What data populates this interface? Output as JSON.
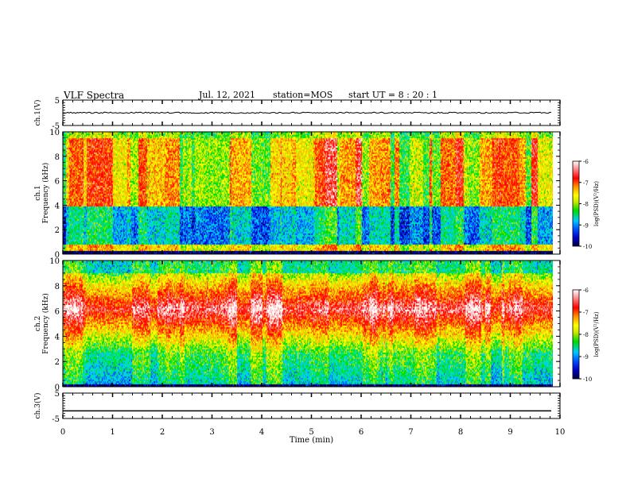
{
  "header": {
    "title": "VLF Spectra",
    "date": "Jul. 12, 2021",
    "station": "station=MOS",
    "start": "start UT =  8 : 20 : 1"
  },
  "chart_data": [
    {
      "type": "line",
      "panel": "ch1-waveform",
      "ylabel": "ch.1(V)",
      "ylim": [
        -5,
        5
      ],
      "yticks": [
        5,
        -5
      ],
      "level": 0
    },
    {
      "type": "heatmap",
      "panel": "ch1-spectrogram",
      "ylabel": "ch.1\nFrequency (kHz)",
      "ylim": [
        0,
        10
      ],
      "yticks": [
        0,
        2,
        4,
        6,
        8,
        10
      ],
      "colorbar": {
        "label": "log(PSD)(V²/Hz)",
        "range": [
          -10,
          -6
        ],
        "ticks": [
          -6,
          -7,
          -8,
          -9,
          -10
        ]
      },
      "description_profile": "broadband bursts 4-9 kHz, strong at -6.5 to -7; lower band -9 to -10"
    },
    {
      "type": "heatmap",
      "panel": "ch2-spectrogram",
      "ylabel": "ch.2\nFrequency (kHz)",
      "ylim": [
        0,
        10
      ],
      "yticks": [
        0,
        2,
        4,
        6,
        8,
        10
      ],
      "colorbar": {
        "label": "log(PSD)(V²/Hz)",
        "range": [
          -10,
          -6
        ],
        "ticks": [
          -6,
          -7,
          -8,
          -9,
          -10
        ]
      }
    },
    {
      "type": "line",
      "panel": "ch3-waveform",
      "ylabel": "ch.3(V)",
      "ylim": [
        -5,
        5
      ],
      "yticks": [
        5,
        -5
      ],
      "level": -2
    }
  ],
  "xaxis": {
    "xlabel": "Time (min)",
    "xlim": [
      0,
      10
    ],
    "ticks": [
      "0",
      "1",
      "2",
      "3",
      "4",
      "5",
      "6",
      "7",
      "8",
      "9",
      "10"
    ],
    "data_end": 9.85
  },
  "colors": {
    "scale": [
      "#000040",
      "#0000c8",
      "#0050ff",
      "#00c8ff",
      "#00e6a0",
      "#00dc00",
      "#c8e600",
      "#ffff00",
      "#ffb400",
      "#ff3c00",
      "#ff0000",
      "#ffa0a0",
      "#ffffff"
    ]
  }
}
